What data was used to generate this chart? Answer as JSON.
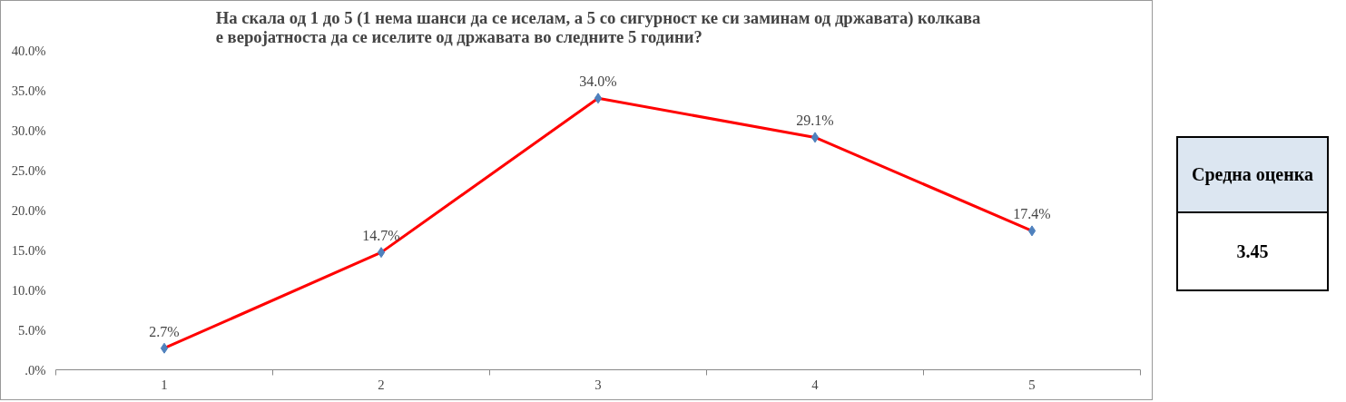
{
  "chart_data": [
    {
      "type": "line",
      "title": "На скала од 1 до 5 (1 нема шанси да се иселам, а 5 со сигурност ке си заминам од државата) колкава е веројатноста да се иселите од државата во следните 5 години?",
      "categories": [
        "1",
        "2",
        "3",
        "4",
        "5"
      ],
      "series": [
        {
          "color": "#ff0000",
          "values": [
            2.7,
            14.7,
            34.0,
            29.1,
            17.4
          ],
          "value_labels": [
            "2.7%",
            "14.7%",
            "34.0%",
            "29.1%",
            "17.4%"
          ],
          "colors": [
            "#4f81bd",
            "#4f81bd",
            "#4f81bd",
            "#4f81bd",
            "#4f81bd"
          ]
        }
      ],
      "marker": "diamond",
      "line_style": "solid",
      "ylim": [
        0,
        40
      ],
      "yticks": [
        {
          "value": 0,
          "label": ".0%"
        },
        {
          "value": 5,
          "label": "5.0%"
        },
        {
          "value": 10,
          "label": "10.0%"
        },
        {
          "value": 15,
          "label": "15.0%"
        },
        {
          "value": 20,
          "label": "20.0%"
        },
        {
          "value": 25,
          "label": "25.0%"
        },
        {
          "value": 30,
          "label": "30.0%"
        },
        {
          "value": 35,
          "label": "35.0%"
        },
        {
          "value": 40,
          "label": "40.0%"
        }
      ],
      "grid": false
    },
    {
      "type": "other",
      "title": "Средна оценка",
      "annotations": [
        "3.45"
      ]
    }
  ]
}
